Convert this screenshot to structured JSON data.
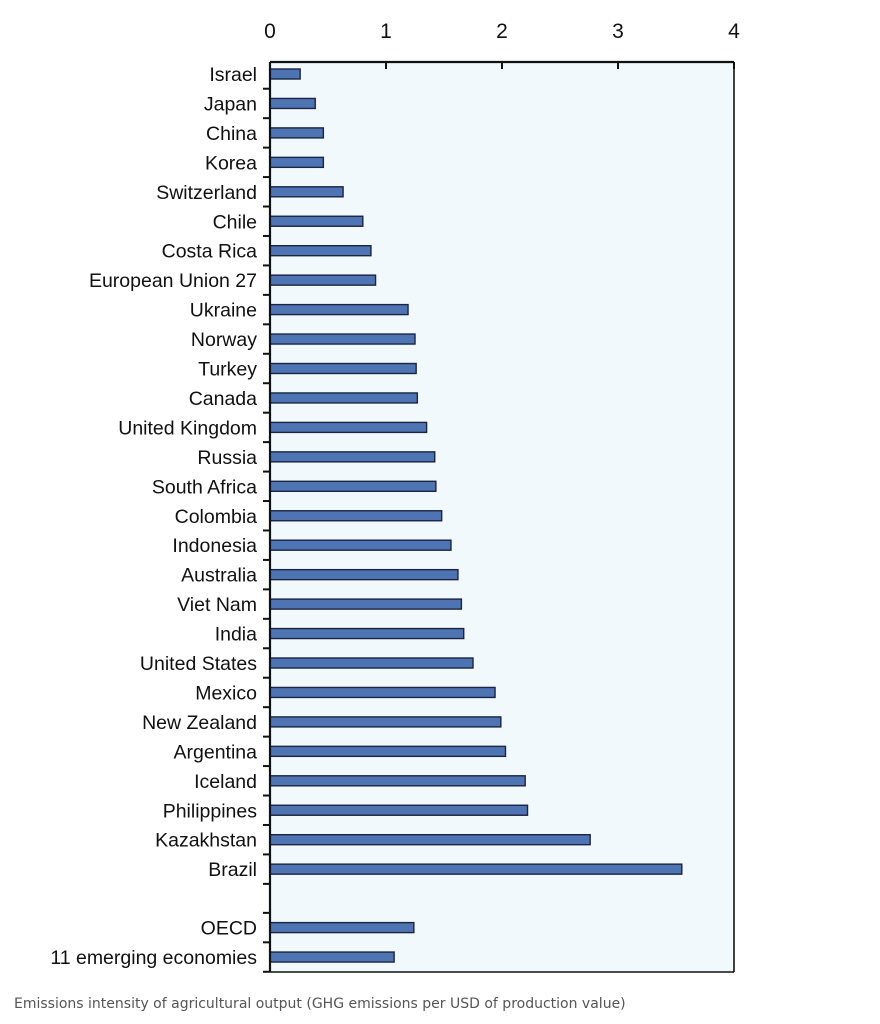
{
  "caption": "Emissions intensity of agricultural output (GHG emissions per USD of production value)",
  "chart_data": {
    "type": "bar",
    "orientation": "horizontal",
    "title": "",
    "xlabel": "",
    "ylabel": "",
    "xlim": [
      0,
      4
    ],
    "x_ticks": [
      "0",
      "1",
      "2",
      "3",
      "4"
    ],
    "x_axis_position": "top",
    "grid": false,
    "bar_color": "#4f74b3",
    "plot_background": "#f1f9fd",
    "categories": [
      "Israel",
      "Japan",
      "China",
      "Korea",
      "Switzerland",
      "Chile",
      "Costa Rica",
      "European Union 27",
      "Ukraine",
      "Norway",
      "Turkey",
      "Canada",
      "United Kingdom",
      "Russia",
      "South Africa",
      "Colombia",
      "Indonesia",
      "Australia",
      "Viet Nam",
      "India",
      "United States",
      "Mexico",
      "New Zealand",
      "Argentina",
      "Iceland",
      "Philippines",
      "Kazakhstan",
      "Brazil",
      "OECD",
      "11 emerging economies"
    ],
    "values": [
      0.26,
      0.39,
      0.46,
      0.46,
      0.63,
      0.8,
      0.87,
      0.91,
      1.19,
      1.25,
      1.26,
      1.27,
      1.35,
      1.42,
      1.43,
      1.48,
      1.56,
      1.62,
      1.65,
      1.67,
      1.75,
      1.94,
      1.99,
      2.03,
      2.2,
      2.22,
      2.76,
      3.55,
      1.24,
      1.07
    ]
  }
}
